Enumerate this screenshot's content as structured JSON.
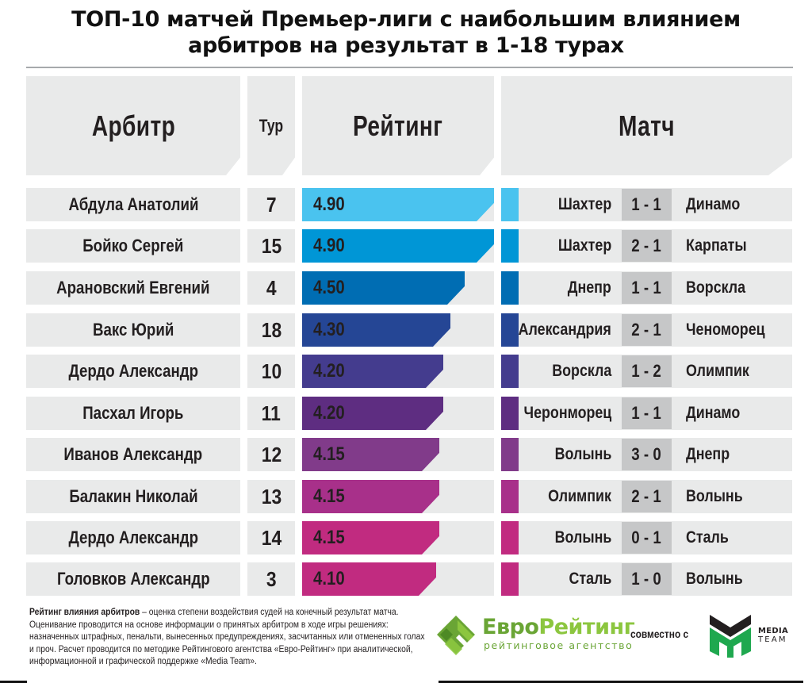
{
  "title": {
    "line1": "ТОП-10 матчей Премьер-лиги с наибольшим влиянием",
    "line2": "арбитров на результат в 1-18 турах"
  },
  "headers": {
    "referee": "Арбитр",
    "round": "Тур",
    "rating": "Рейтинг",
    "match": "Матч"
  },
  "rows": [
    {
      "referee": "Абдула Анатолий",
      "round": "7",
      "rating": "4.90",
      "color": "#4ac3ef",
      "home": "Шахтер",
      "score": "1 - 1",
      "away": "Динамо"
    },
    {
      "referee": "Бойко Сергей",
      "round": "15",
      "rating": "4.90",
      "color": "#0096d6",
      "home": "Шахтер",
      "score": "2 - 1",
      "away": "Карпаты"
    },
    {
      "referee": "Арановский Евгений",
      "round": "4",
      "rating": "4.50",
      "color": "#006db3",
      "home": "Днепр",
      "score": "1 - 1",
      "away": "Ворскла"
    },
    {
      "referee": "Вакс Юрий",
      "round": "18",
      "rating": "4.30",
      "color": "#254695",
      "home": "Александрия",
      "score": "2 - 1",
      "away": "Ченоморец"
    },
    {
      "referee": "Дердо Александр",
      "round": "10",
      "rating": "4.20",
      "color": "#443c8e",
      "home": "Ворскла",
      "score": "1 - 2",
      "away": "Олимпик"
    },
    {
      "referee": "Пасхал Игорь",
      "round": "11",
      "rating": "4.20",
      "color": "#5e2d81",
      "home": "Черонморец",
      "score": "1 - 1",
      "away": "Динамо"
    },
    {
      "referee": "Иванов Александр",
      "round": "12",
      "rating": "4.15",
      "color": "#813b8a",
      "home": "Волынь",
      "score": "3 - 0",
      "away": "Днепр"
    },
    {
      "referee": "Балакин Николай",
      "round": "13",
      "rating": "4.15",
      "color": "#a8308a",
      "home": "Олимпик",
      "score": "2 - 1",
      "away": "Волынь"
    },
    {
      "referee": "Дердо Александр",
      "round": "14",
      "rating": "4.15",
      "color": "#c12b80",
      "home": "Волынь",
      "score": "0 - 1",
      "away": "Сталь"
    },
    {
      "referee": "Головков Александр",
      "round": "3",
      "rating": "4.10",
      "color": "#c12b80",
      "home": "Сталь",
      "score": "1 - 0",
      "away": "Волынь"
    }
  ],
  "footnote": {
    "bold": "Рейтинг влияния арбитров",
    "text": " – оценка степени воздействия судей на конечный результат матча. Оценивание проводится на основе информации о принятых арбитром в ходе игры решениях: назначенных штрафных, пенальти, вынесенных предупреждениях, засчитанных или отмененных голах и проч. Расчет проводится по методике Рейтингового агентства «Евро-Рейтинг» при аналитической, информационной и графической поддержке «Media Team»."
  },
  "logos": {
    "euro_part1": "Евро",
    "euro_part2": "Рейтинг",
    "euro_sub": "рейтинговое агентство",
    "together": "совместно с",
    "media": "MEDIA",
    "team": "TEAM"
  },
  "colors": {
    "cell_bg": "#e9eaea",
    "score_bg": "#c6c7c8",
    "text": "#231f20",
    "euro_green_dark": "#6aa535",
    "euro_green_light": "#8cc63f",
    "mt_green": "#1fa84f"
  },
  "chart_data": {
    "type": "bar",
    "orientation": "horizontal",
    "title": "ТОП-10 матчей Премьер-лиги с наибольшим влиянием арбитров на результат в 1-18 турах",
    "xlabel": "Рейтинг",
    "ylabel": "Арбитр",
    "categories": [
      "Абдула Анатолий",
      "Бойко Сергей",
      "Арановский Евгений",
      "Вакс Юрий",
      "Дердо Александр",
      "Пасхал Игорь",
      "Иванов Александр",
      "Балакин Николай",
      "Дердо Александр",
      "Головков Александр"
    ],
    "values": [
      4.9,
      4.9,
      4.5,
      4.3,
      4.2,
      4.2,
      4.15,
      4.15,
      4.15,
      4.1
    ],
    "rounds": [
      7,
      15,
      4,
      18,
      10,
      11,
      12,
      13,
      14,
      3
    ],
    "matches": [
      "Шахтер 1 - 1 Динамо",
      "Шахтер 2 - 1 Карпаты",
      "Днепр 1 - 1 Ворскла",
      "Александрия 2 - 1 Ченоморец",
      "Ворскла 1 - 2 Олимпик",
      "Черонморец 1 - 1 Динамо",
      "Волынь 3 - 0 Днепр",
      "Олимпик 2 - 1 Волынь",
      "Волынь 0 - 1 Сталь",
      "Сталь 1 - 0 Волынь"
    ],
    "grid": false,
    "legend": "none"
  }
}
